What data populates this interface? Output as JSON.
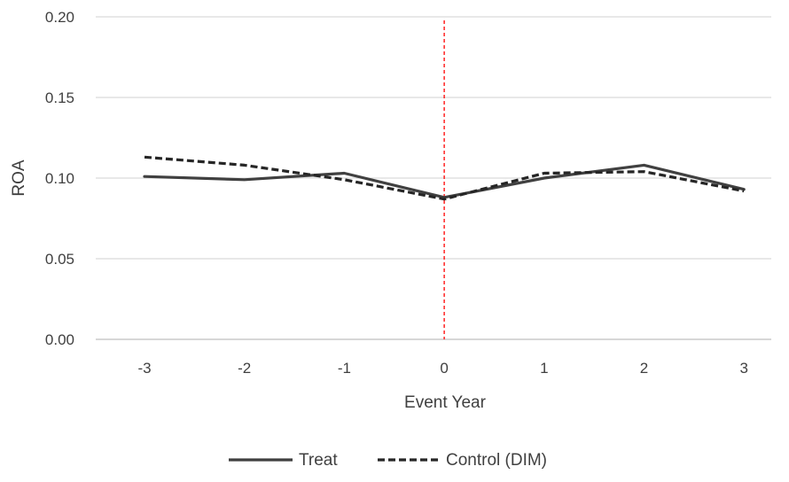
{
  "chart_data": {
    "type": "line",
    "title": "",
    "xlabel": "Event Year",
    "ylabel": "ROA",
    "categories": [
      "-3",
      "-2",
      "-1",
      "0",
      "1",
      "2",
      "3"
    ],
    "x": [
      -3,
      -2,
      -1,
      0,
      1,
      2,
      3
    ],
    "ylim": [
      0,
      0.2
    ],
    "yticks": [
      0,
      0.05,
      0.1,
      0.15,
      0.2
    ],
    "ytick_labels": [
      "0.00",
      "0.05",
      "0.10",
      "0.15",
      "0.20"
    ],
    "grid": "horizontal",
    "legend_position": "bottom-center",
    "event_marker": {
      "x": 0,
      "color": "#ff0000",
      "style": "dashed"
    },
    "series": [
      {
        "name": "Treat",
        "values": [
          0.101,
          0.099,
          0.103,
          0.088,
          0.1,
          0.108,
          0.093
        ],
        "color": "#404040",
        "style": "solid"
      },
      {
        "name": "Control (DIM)",
        "values": [
          0.113,
          0.108,
          0.099,
          0.087,
          0.103,
          0.104,
          0.092
        ],
        "color": "#262626",
        "style": "dashed"
      }
    ]
  }
}
